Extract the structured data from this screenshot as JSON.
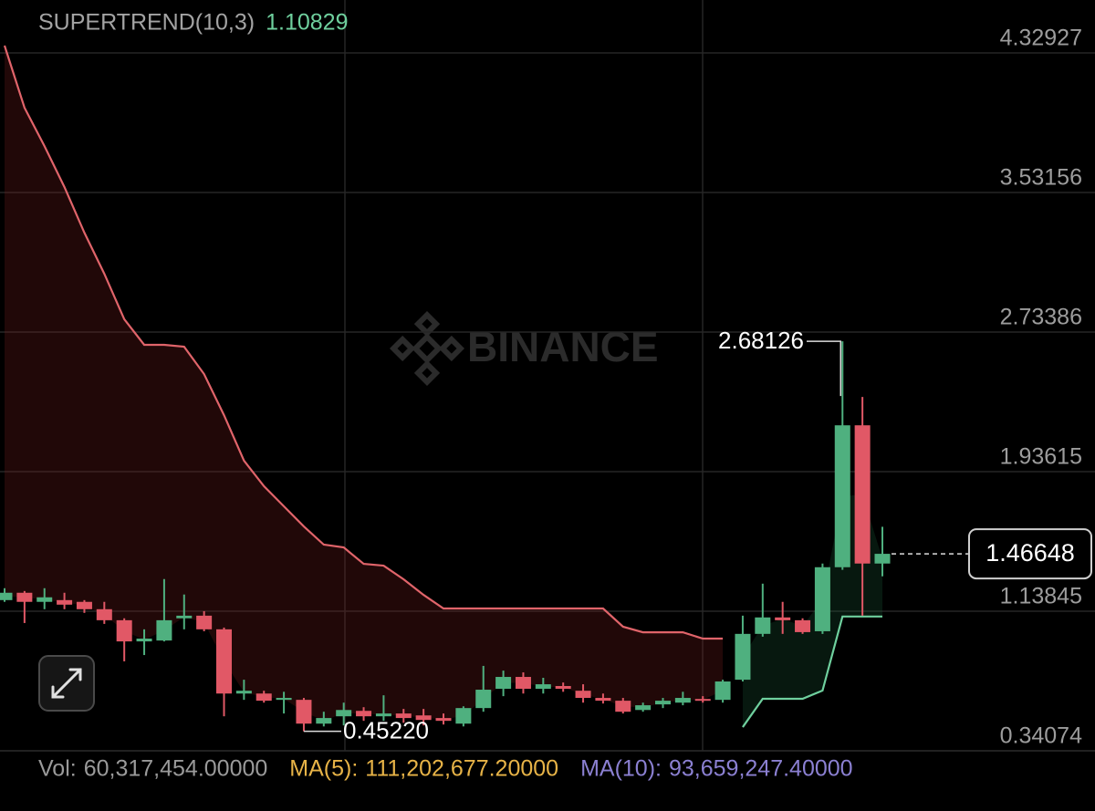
{
  "chart_data": {
    "type": "candlestick",
    "indicator_name": "SUPERTREND(10,3)",
    "watermark": "BINANCE",
    "ylim": [
      0.3408,
      4.6317
    ],
    "yticks": [
      4.32927,
      3.53156,
      2.73386,
      1.93615,
      1.13845,
      0.34074
    ],
    "grid": true,
    "up_color": "#4fb07f",
    "down_color": "#e15866",
    "candles": {
      "open": [
        1.202,
        1.244,
        1.192,
        1.202,
        1.192,
        1.15,
        1.087,
        0.966,
        0.971,
        1.098,
        1.113,
        1.035,
        0.668,
        0.668,
        0.632,
        0.632,
        0.496,
        0.538,
        0.569,
        0.538,
        0.554,
        0.543,
        0.528,
        0.496,
        0.585,
        0.695,
        0.763,
        0.695,
        0.711,
        0.684,
        0.643,
        0.627,
        0.574,
        0.606,
        0.616,
        0.637,
        0.632,
        0.747,
        1.009,
        1.103,
        1.087,
        1.024,
        1.39,
        2.201,
        1.411
      ],
      "high": [
        1.27,
        1.254,
        1.27,
        1.244,
        1.202,
        1.192,
        1.098,
        1.035,
        1.322,
        1.234,
        1.139,
        1.045,
        0.747,
        0.684,
        0.678,
        0.643,
        0.564,
        0.616,
        0.59,
        0.658,
        0.58,
        0.58,
        0.554,
        0.595,
        0.826,
        0.799,
        0.789,
        0.758,
        0.731,
        0.721,
        0.668,
        0.643,
        0.616,
        0.643,
        0.678,
        0.653,
        0.747,
        1.113,
        1.296,
        1.192,
        1.098,
        1.411,
        2.68126,
        2.363,
        1.621
      ],
      "low": [
        1.192,
        1.071,
        1.15,
        1.15,
        1.129,
        1.066,
        0.852,
        0.888,
        0.966,
        1.035,
        1.024,
        0.538,
        0.632,
        0.616,
        0.554,
        0.4522,
        0.48,
        0.486,
        0.512,
        0.512,
        0.501,
        0.486,
        0.491,
        0.48,
        0.564,
        0.653,
        0.668,
        0.668,
        0.678,
        0.616,
        0.611,
        0.554,
        0.564,
        0.585,
        0.601,
        0.616,
        0.616,
        0.737,
        0.993,
        1.009,
        1.009,
        1.009,
        1.375,
        1.113,
        1.338
      ],
      "close": [
        1.244,
        1.192,
        1.218,
        1.176,
        1.15,
        1.087,
        0.966,
        0.982,
        1.087,
        1.113,
        1.035,
        0.668,
        0.684,
        0.627,
        0.643,
        0.496,
        0.528,
        0.574,
        0.538,
        0.554,
        0.528,
        0.517,
        0.512,
        0.585,
        0.69,
        0.763,
        0.695,
        0.721,
        0.695,
        0.643,
        0.627,
        0.564,
        0.601,
        0.627,
        0.643,
        0.627,
        0.737,
        1.009,
        1.103,
        1.087,
        1.019,
        1.39,
        2.201,
        1.411,
        1.46648
      ]
    },
    "low_label": "0.45220",
    "series": [
      {
        "name": "down",
        "color": "#e0646a",
        "fill": "rgba(120,30,30,0.28)",
        "values": [
          4.371,
          4.016,
          3.797,
          3.563,
          3.302,
          3.067,
          2.807,
          2.661,
          2.661,
          2.65,
          2.494,
          2.259,
          1.999,
          1.853,
          1.738,
          1.623,
          1.519,
          1.503,
          1.409,
          1.399,
          1.321,
          1.232,
          1.154,
          1.154,
          1.154,
          1.154,
          1.154,
          1.154,
          1.154,
          1.154,
          1.154,
          1.05,
          1.018,
          1.018,
          1.018,
          0.982,
          0.982,
          null,
          null,
          null,
          null,
          null,
          null,
          null,
          null
        ]
      },
      {
        "name": "up",
        "color": "#6fd09e",
        "fill": "rgba(30,110,70,0.22)",
        "values": [
          null,
          null,
          null,
          null,
          null,
          null,
          null,
          null,
          null,
          null,
          null,
          null,
          null,
          null,
          null,
          null,
          null,
          null,
          null,
          null,
          null,
          null,
          null,
          null,
          null,
          null,
          null,
          null,
          null,
          null,
          null,
          null,
          null,
          null,
          null,
          null,
          null,
          0.476,
          0.638,
          0.638,
          0.638,
          0.685,
          1.10829,
          1.10829,
          1.10829
        ]
      }
    ],
    "volume_info": [
      {
        "label": "Vol:",
        "text": "60,317,454.00000",
        "color": "#9a9a9a"
      },
      {
        "label": "MA(5):",
        "text": "111,202,677.20000",
        "color": "#e7b347"
      },
      {
        "label": "MA(10):",
        "text": "93,659,247.40000",
        "color": "#8b80d2"
      }
    ]
  }
}
